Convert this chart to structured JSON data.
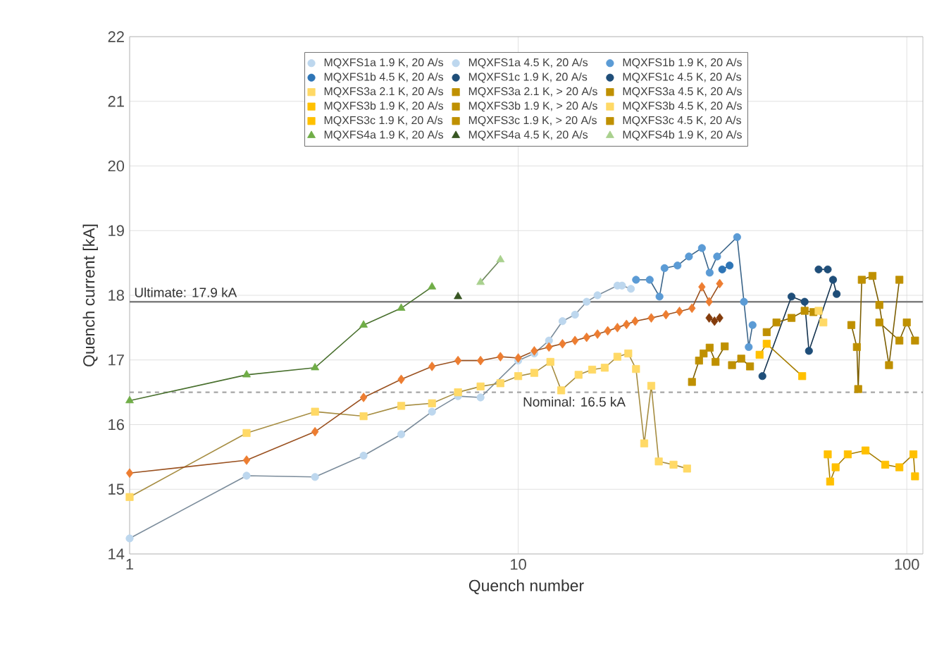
{
  "chart_data": {
    "type": "line",
    "xlabel": "Quench number",
    "ylabel": "Quench current [kA]",
    "log": "x",
    "xlim": [
      1,
      110
    ],
    "xticks": [
      1,
      10,
      100
    ],
    "ylim": [
      14,
      22
    ],
    "yticks": [
      14,
      15,
      16,
      17,
      18,
      19,
      20,
      21,
      22
    ],
    "grid": true,
    "legend": "top",
    "line_style": "solid",
    "ref_lines": [
      {
        "axis": "y",
        "value": 17.9,
        "label": "Ultimate: 17.9 kA",
        "color": "#7f7f7f",
        "line_style": "solid"
      },
      {
        "axis": "y",
        "value": 16.5,
        "label": "Nominal: 16.5 kA",
        "color": "#a6a6a6",
        "line_style": "dashed"
      }
    ],
    "series": [
      {
        "name": "MQXFS1a 1.9 K, 20 A/s",
        "color": "#bdd7ee",
        "marker": "circle",
        "x": [
          1,
          2,
          3,
          4,
          5,
          6,
          7,
          8,
          10,
          11,
          12,
          13,
          14,
          15,
          16,
          18
        ],
        "values": [
          14.24,
          15.21,
          15.19,
          15.52,
          15.85,
          16.2,
          16.44,
          16.42,
          16.99,
          17.1,
          17.3,
          17.6,
          17.7,
          17.9,
          18.0,
          18.15
        ]
      },
      {
        "name": "MQXFS1a 4.5 K, 20 A/s",
        "color": "#bdd7ee",
        "marker": "circle",
        "x": [
          18.5,
          19.5
        ],
        "values": [
          18.15,
          18.1
        ]
      },
      {
        "name": "MQXFS1b 1.9 K, 20 A/s",
        "color": "#5b9bd5",
        "marker": "circle",
        "x": [
          20.1,
          21.8,
          23.1,
          23.8,
          25.7,
          27.5,
          29.7,
          31.1,
          32.5,
          36.6,
          38.1,
          39.2,
          40.1
        ],
        "values": [
          18.24,
          18.24,
          17.98,
          18.42,
          18.46,
          18.6,
          18.73,
          18.35,
          18.6,
          18.9,
          17.9,
          17.2,
          17.54
        ]
      },
      {
        "name": "MQXFS1b 4.5 K, 20 A/s",
        "color": "#2e75b6",
        "marker": "circle",
        "x": [
          33.5,
          35
        ],
        "values": [
          18.4,
          18.46
        ]
      },
      {
        "name": "MQXFS1c 1.9 K, 20 A/s",
        "color": "#1f4e79",
        "marker": "circle",
        "x": [
          42.5,
          50.5,
          54.6,
          56,
          64.6,
          66
        ],
        "values": [
          16.75,
          17.98,
          17.9,
          17.14,
          18.24,
          18.02
        ]
      },
      {
        "name": "MQXFS1c 4.5 K, 20 A/s",
        "color": "#1f4e79",
        "marker": "circle",
        "x": [
          59.3,
          62.6
        ],
        "values": [
          18.4,
          18.4
        ]
      },
      {
        "name": "MQXFS3a 2.1 K, 20 A/s",
        "color": "#ffd966",
        "marker": "square",
        "x": [
          1,
          2,
          3,
          4,
          5,
          6,
          7,
          8,
          9,
          10,
          11,
          12.1,
          12.9,
          14.3,
          15.5,
          16.7,
          18,
          19.2,
          20.1,
          21.1,
          22,
          23,
          25.1,
          27.2
        ],
        "values": [
          14.88,
          15.87,
          16.2,
          16.13,
          16.29,
          16.33,
          16.5,
          16.59,
          16.64,
          16.75,
          16.8,
          16.97,
          16.53,
          16.77,
          16.85,
          16.88,
          17.05,
          17.1,
          16.86,
          15.71,
          16.6,
          15.43,
          15.38,
          15.32
        ]
      },
      {
        "name": "MQXFS3a 2.1 K, > 20 A/s",
        "color": "#bf9000",
        "marker": "square",
        "x": [
          28,
          29.2,
          30,
          31.1,
          32.2,
          34
        ],
        "values": [
          16.66,
          16.99,
          17.1,
          17.19,
          16.97,
          17.21
        ]
      },
      {
        "name": "MQXFS3a 4.5 K, 20 A/s",
        "color": "#bf9000",
        "marker": "square",
        "x": [
          35.5,
          37.5,
          39.5
        ],
        "values": [
          16.92,
          17.02,
          16.9
        ]
      },
      {
        "name": "MQXFS3b 1.9 K, 20 A/s",
        "color": "#ffc000",
        "marker": "square",
        "x": [
          41.8,
          43.6,
          53.8
        ],
        "values": [
          17.08,
          17.25,
          16.75
        ]
      },
      {
        "name": "MQXFS3b 1.9 K, > 20 A/s",
        "color": "#bf9000",
        "marker": "square",
        "x": [
          43.6,
          46.2,
          50.5,
          54.6,
          57.5
        ],
        "values": [
          17.43,
          17.58,
          17.65,
          17.76,
          17.74
        ]
      },
      {
        "name": "MQXFS3b 4.5 K, 20 A/s",
        "color": "#ffd966",
        "marker": "square",
        "x": [
          59.3,
          61
        ],
        "values": [
          17.76,
          17.58
        ]
      },
      {
        "name": "MQXFS3c 1.9 K, 20 A/s",
        "color": "#ffc000",
        "marker": "square",
        "x": [
          62.6,
          63.5,
          65.6,
          70.5,
          78.3,
          88,
          95.7,
          104,
          105
        ],
        "values": [
          15.54,
          15.12,
          15.34,
          15.54,
          15.6,
          15.38,
          15.34,
          15.54,
          15.2
        ]
      },
      {
        "name": "MQXFS3c 1.9 K, > 20 A/s",
        "color": "#bf9000",
        "marker": "square",
        "x": [
          72,
          74.4,
          75,
          76.6,
          81.6,
          85,
          90,
          95.7
        ],
        "values": [
          17.54,
          17.2,
          16.55,
          18.24,
          18.3,
          17.85,
          16.92,
          18.24
        ]
      },
      {
        "name": "MQXFS3c 4.5 K, 20 A/s",
        "color": "#bf9000",
        "marker": "square",
        "x": [
          85,
          95.7,
          100,
          105
        ],
        "values": [
          17.58,
          17.3,
          17.58,
          17.3
        ]
      },
      {
        "name": "MQXFS4a 1.9 K, 20 A/s",
        "color": "#70ad47",
        "marker": "triangle",
        "x": [
          1,
          2,
          3,
          4,
          5,
          6
        ],
        "values": [
          16.37,
          16.77,
          16.88,
          17.54,
          17.8,
          18.13
        ]
      },
      {
        "name": "MQXFS4a 4.5 K, 20 A/s",
        "color": "#375623",
        "marker": "triangle",
        "x": [
          7
        ],
        "values": [
          17.98
        ]
      },
      {
        "name": "MQXFS4b 1.9 K, 20 A/s",
        "color": "#a9d18e",
        "marker": "triangle",
        "x": [
          8,
          9
        ],
        "values": [
          18.2,
          18.55
        ]
      },
      {
        "color": "#ed7d31",
        "marker": "diamond",
        "x": [
          1,
          2,
          3,
          4,
          5,
          6,
          7,
          8,
          9,
          10,
          11,
          12,
          13,
          14,
          15,
          16,
          17,
          18,
          19,
          20,
          22,
          24,
          26,
          28,
          29.7,
          31,
          33
        ],
        "values": [
          15.25,
          15.45,
          15.89,
          16.42,
          16.7,
          16.9,
          16.99,
          16.99,
          17.05,
          17.03,
          17.14,
          17.2,
          17.25,
          17.3,
          17.35,
          17.4,
          17.45,
          17.5,
          17.55,
          17.6,
          17.65,
          17.7,
          17.75,
          17.8,
          18.13,
          17.9,
          18.18
        ]
      },
      {
        "color": "#843c0c",
        "marker": "diamond",
        "x": [
          31,
          32,
          33
        ],
        "values": [
          17.65,
          17.6,
          17.65
        ]
      }
    ]
  }
}
